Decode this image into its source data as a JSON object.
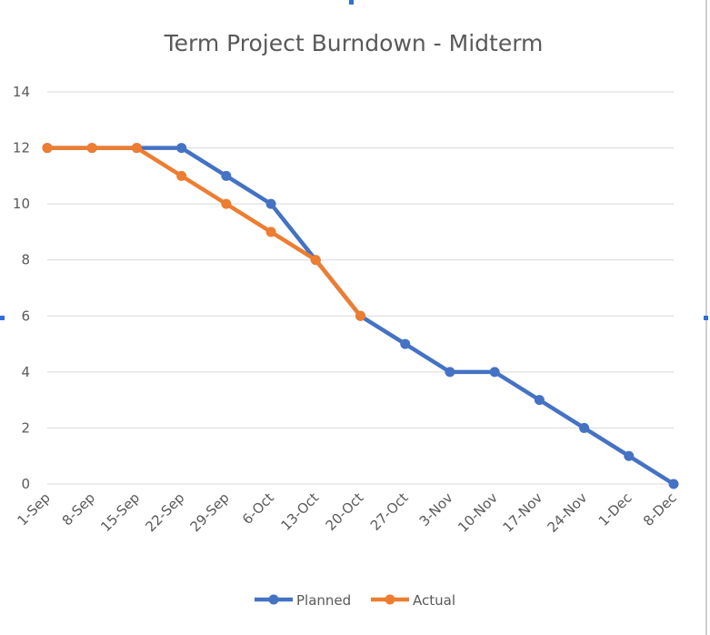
{
  "chart_data": {
    "type": "line",
    "title": "Term Project Burndown - Midterm",
    "categories": [
      "1-Sep",
      "8-Sep",
      "15-Sep",
      "22-Sep",
      "29-Sep",
      "6-Oct",
      "13-Oct",
      "20-Oct",
      "27-Oct",
      "3-Nov",
      "10-Nov",
      "17-Nov",
      "24-Nov",
      "1-Dec",
      "8-Dec"
    ],
    "series": [
      {
        "name": "Planned",
        "color": "#4472c4",
        "values": [
          12,
          12,
          12,
          12,
          11,
          10,
          8,
          6,
          5,
          4,
          4,
          3,
          2,
          1,
          0
        ]
      },
      {
        "name": "Actual",
        "color": "#ed7d31",
        "values": [
          12,
          12,
          12,
          11,
          10,
          9,
          8,
          6,
          null,
          null,
          null,
          null,
          null,
          null,
          null
        ]
      }
    ],
    "ylim": [
      0,
      14
    ],
    "yticks": [
      0,
      2,
      4,
      6,
      8,
      10,
      12,
      14
    ],
    "grid": true,
    "legend_position": "bottom"
  }
}
